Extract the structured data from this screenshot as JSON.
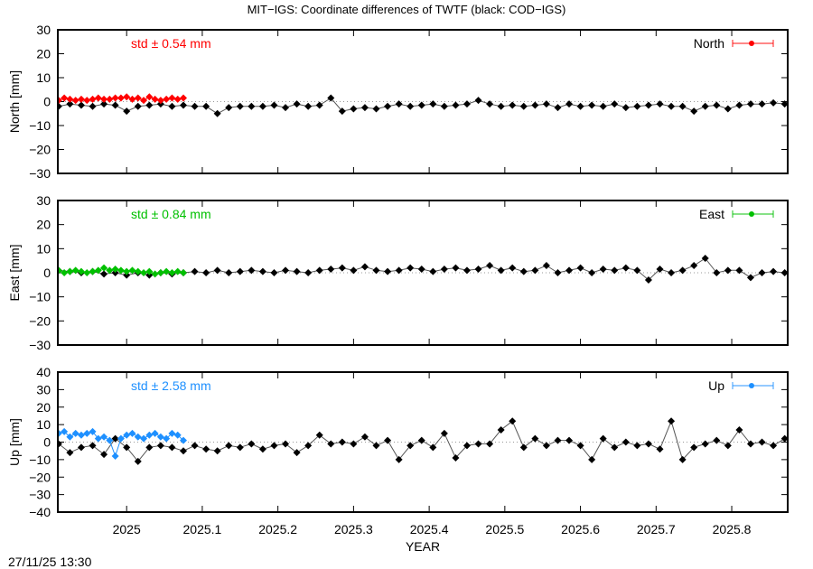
{
  "chart_data": {
    "type": "line",
    "title": "MIT−IGS: Coordinate differences of TWTF (black: COD−IGS)",
    "xlabel": "YEAR",
    "timestamp": "27/11/25 13:30",
    "xlim": [
      2024.909,
      2025.874
    ],
    "xticks": [
      2025,
      2025.1,
      2025.2,
      2025.3,
      2025.4,
      2025.5,
      2025.6,
      2025.7,
      2025.8
    ],
    "xtick_labels": [
      "2025",
      "2025.1",
      "2025.2",
      "2025.3",
      "2025.4",
      "2025.5",
      "2025.6",
      "2025.7",
      "2025.8"
    ],
    "grid": false,
    "legend_placement": "top-right",
    "x_reference": [
      2024.91,
      2024.925,
      2024.94,
      2024.955,
      2024.97,
      2024.985,
      2025.0,
      2025.015,
      2025.03,
      2025.045,
      2025.06,
      2025.075,
      2025.09,
      2025.105,
      2025.12,
      2025.135,
      2025.15,
      2025.165,
      2025.18,
      2025.195,
      2025.21,
      2025.225,
      2025.24,
      2025.255,
      2025.27,
      2025.285,
      2025.3,
      2025.315,
      2025.33,
      2025.345,
      2025.36,
      2025.375,
      2025.39,
      2025.405,
      2025.42,
      2025.435,
      2025.45,
      2025.465,
      2025.48,
      2025.495,
      2025.51,
      2025.525,
      2025.54,
      2025.555,
      2025.57,
      2025.585,
      2025.6,
      2025.615,
      2025.63,
      2025.645,
      2025.66,
      2025.675,
      2025.69,
      2025.705,
      2025.72,
      2025.735,
      2025.75,
      2025.765,
      2025.78,
      2025.795,
      2025.81,
      2025.825,
      2025.84,
      2025.855,
      2025.87
    ],
    "x_mit": [
      2024.91,
      2024.9175,
      2024.925,
      2024.9325,
      2024.94,
      2024.9475,
      2024.955,
      2024.9625,
      2024.97,
      2024.9775,
      2024.985,
      2024.9925,
      2025.0,
      2025.0075,
      2025.015,
      2025.0225,
      2025.03,
      2025.0375,
      2025.045,
      2025.0525,
      2025.06,
      2025.0675,
      2025.075
    ],
    "panels": [
      {
        "ylabel": "North [mm]",
        "legend": "North",
        "std_label": "std ± 0.54 mm",
        "color": "#ff0000",
        "ylim": [
          -30,
          30
        ],
        "yticks": [
          30,
          20,
          10,
          0,
          -10,
          -20,
          -30
        ],
        "ytick_labels": [
          "30",
          "20",
          "10",
          "0",
          "−10",
          "−20",
          "−30"
        ],
        "reference_values": [
          -2,
          -1,
          -1.5,
          -2,
          -1,
          -1.5,
          -4,
          -2,
          -1.5,
          -1,
          -2,
          -1.5,
          -2,
          -2,
          -5,
          -2.5,
          -2,
          -2,
          -2,
          -1.5,
          -2.5,
          -1,
          -2,
          -1.5,
          1.5,
          -4,
          -3,
          -2.5,
          -3,
          -2,
          -1,
          -2,
          -1.5,
          -1,
          -2,
          -1.5,
          -1,
          0.5,
          -1,
          -2,
          -1.5,
          -2,
          -1.5,
          -1,
          -2.5,
          -1,
          -2,
          -1.5,
          -2,
          -1,
          -2.5,
          -2,
          -1.5,
          -1,
          -2,
          -2,
          -4,
          -2,
          -1.5,
          -3,
          -1.5,
          -1,
          -1,
          -0.5,
          -1
        ],
        "mit_values": [
          0.5,
          1.5,
          1,
          0.5,
          1,
          0.5,
          1,
          1.5,
          1,
          1,
          1.5,
          1.5,
          2,
          1,
          1.5,
          0.5,
          2,
          1,
          0.5,
          1,
          1.5,
          1,
          1.5
        ]
      },
      {
        "ylabel": "East [mm]",
        "legend": "East",
        "std_label": "std ± 0.84 mm",
        "color": "#00c000",
        "ylim": [
          -30,
          30
        ],
        "yticks": [
          30,
          20,
          10,
          0,
          -10,
          -20,
          -30
        ],
        "ytick_labels": [
          "30",
          "20",
          "10",
          "0",
          "−10",
          "−20",
          "−30"
        ],
        "reference_values": [
          1,
          0.5,
          0,
          0.5,
          -0.5,
          0,
          -1,
          0,
          -1,
          0,
          -0.5,
          0,
          0.5,
          0,
          1,
          0,
          0.5,
          1,
          0.5,
          0,
          1,
          0.5,
          0,
          1,
          1.5,
          2,
          1,
          2.5,
          1,
          0.5,
          1,
          2,
          1.5,
          0.5,
          1.5,
          2,
          1,
          1.5,
          3,
          1,
          2,
          0.5,
          1,
          3,
          0,
          1,
          2,
          0,
          1.5,
          1,
          2,
          1,
          -3,
          1.5,
          0,
          1,
          3,
          6,
          0,
          1,
          1,
          -2,
          0,
          0.5,
          0
        ],
        "mit_values": [
          1,
          0,
          0.5,
          1,
          0.5,
          0,
          0.5,
          1,
          2,
          1,
          1.5,
          1,
          0.5,
          1,
          0.5,
          0,
          0.5,
          -0.5,
          0,
          0.5,
          0,
          0.5,
          0
        ]
      },
      {
        "ylabel": "Up [mm]",
        "legend": "Up",
        "std_label": "std ± 2.58 mm",
        "color": "#1e90ff",
        "ylim": [
          -40,
          40
        ],
        "yticks": [
          40,
          30,
          20,
          10,
          0,
          -10,
          -20,
          -30,
          -40
        ],
        "ytick_labels": [
          "40",
          "30",
          "20",
          "10",
          "0",
          "−10",
          "−20",
          "−30",
          "−40"
        ],
        "reference_values": [
          -1,
          -6,
          -3,
          -2,
          -7,
          2,
          -3,
          -11,
          -3,
          -2,
          -3,
          -5,
          -2,
          -4,
          -5,
          -2,
          -3,
          -1,
          -4,
          -2,
          -1,
          -6,
          -2,
          4,
          -1,
          0,
          -1,
          3,
          -2,
          1,
          -10,
          -2,
          1,
          -3,
          5,
          -9,
          -2,
          -1,
          -1,
          7,
          12,
          -3,
          2,
          -2,
          1,
          1,
          -2,
          -10,
          2,
          -3,
          0,
          -2,
          -1,
          -4,
          12,
          -10,
          -3,
          -1,
          1,
          -2,
          7,
          -1,
          0,
          -2,
          2
        ],
        "mit_values": [
          5,
          6,
          3,
          5,
          4,
          5,
          6,
          2,
          3,
          1,
          -8,
          2,
          4,
          5,
          3,
          2,
          4,
          5,
          3,
          2,
          5,
          4,
          1
        ]
      }
    ]
  }
}
